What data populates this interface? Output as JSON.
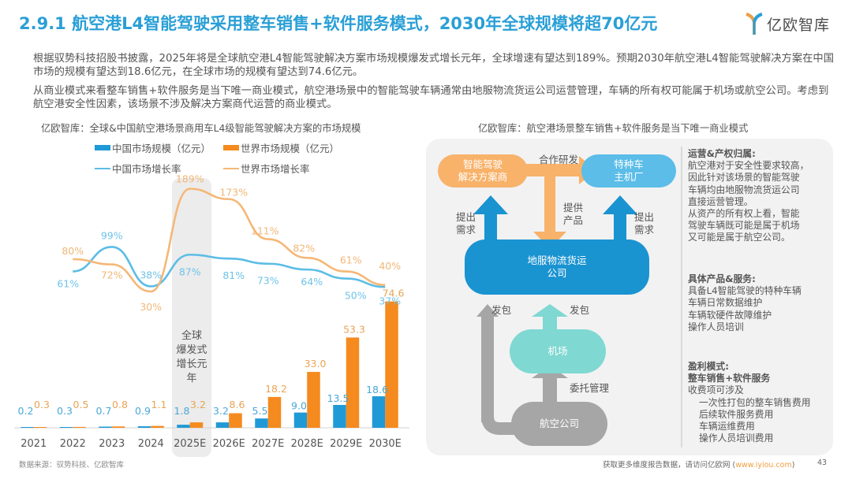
{
  "header": {
    "title": "2.9.1 航空港L4智能驾驶采用整车销售+软件服务模式，2030年全球规模将超70亿元",
    "logo_text": "亿欧智库"
  },
  "paragraphs": [
    "根据驭势科技招股书披露，2025年将是全球航空港L4智能驾驶解决方案市场规模爆发式增长元年，全球增速有望达到189%。预期2030年航空港L4智能驾驶解决方案在中国市场的规模有望达到18.6亿元，在全球市场的规模有望达到74.6亿元。",
    "从商业模式来看整车销售+软件服务是当下唯一商业模式，航空港场景中的智能驾驶车辆通常由地服物流货运公司运营管理，车辆的所有权可能属于机场或航空公司。考虑到航空港安全性因素，该场景不涉及解决方案商代运营的商业模式。"
  ],
  "chart_data": {
    "type": "bar",
    "title": "亿欧智库：全球&中国航空港场景商用车L4级智能驾驶解决方案的市场规模",
    "xlabel": "",
    "ylabel": "",
    "categories": [
      "2021",
      "2022",
      "2023",
      "2024",
      "2025E",
      "2026E",
      "2027E",
      "2028E",
      "2029E",
      "2030E"
    ],
    "series": [
      {
        "name": "中国市场规模（亿元）",
        "kind": "bar",
        "color": "#1f9ad6",
        "values": [
          0.2,
          0.3,
          0.7,
          0.9,
          1.8,
          3.2,
          5.5,
          9.0,
          13.5,
          18.6
        ],
        "labels": [
          "0.2",
          "0.3",
          "0.7",
          "0.9",
          "1.8",
          "3.2",
          "5.5",
          "9.0",
          "13.5",
          "18.6"
        ]
      },
      {
        "name": "世界市场规模（亿元）",
        "kind": "bar",
        "color": "#f58a1f",
        "values": [
          0.3,
          0.5,
          0.8,
          1.1,
          3.2,
          8.6,
          18.2,
          33.0,
          53.3,
          74.6
        ],
        "labels": [
          "0.3",
          "0.5",
          "0.8",
          "1.1",
          "3.2",
          "8.6",
          "18.2",
          "33.0",
          "53.3",
          "74.6"
        ]
      },
      {
        "name": "中国市场增长率",
        "kind": "line",
        "color": "#5bbde6",
        "values": [
          null,
          61,
          99,
          38,
          87,
          81,
          73,
          64,
          50,
          37
        ],
        "labels": [
          "",
          "61%",
          "99%",
          "38%",
          "87%",
          "81%",
          "73%",
          "64%",
          "50%",
          "37%"
        ]
      },
      {
        "name": "世界市场增长率",
        "kind": "line",
        "color": "#f5b777",
        "values": [
          null,
          80,
          72,
          30,
          189,
          173,
          111,
          82,
          61,
          40
        ],
        "labels": [
          "",
          "80%",
          "72%",
          "30%",
          "189%",
          "173%",
          "111%",
          "82%",
          "61%",
          "40%"
        ]
      }
    ],
    "ylim": [
      0,
      80
    ],
    "legend": "top",
    "grid": false,
    "annotation": {
      "category": "2025E",
      "text": "全球\n爆发式\n增长元年"
    }
  },
  "diagram": {
    "title": "亿欧智库：航空港场景整车销售+软件服务是当下唯一商业模式",
    "nodes": {
      "solution_provider": "智能驾驶\n解决方案商",
      "oem": "特种车\n主机厂",
      "logistics": "地服物流货运\n公司",
      "airport": "机场",
      "airline": "航空公司"
    },
    "edges": {
      "cooperate": "合作研发",
      "provide": "提供\n产品",
      "demand_left": "提出\n需求",
      "demand_right": "提出\n需求",
      "outsource_left": "发包",
      "outsource_center": "发包",
      "entrust": "委托管理"
    },
    "colors": {
      "orange": "#f8b26a",
      "blue_light": "#5bbde8",
      "blue_dark": "#1a93d1",
      "teal": "#7fd8d2",
      "gray": "#a6a6a6"
    }
  },
  "sidebar": {
    "sections": [
      {
        "heading": "运营&产权归属:",
        "lines": [
          "航空港对于安全性要求较高，",
          "因此针对该场景的智能驾驶",
          "车辆均由地服物流货运公司",
          "直接运营管理。",
          "从资产的所有权上看，智能",
          "驾驶车辆既可能是属于机场",
          "又可能是属于航空公司。"
        ]
      },
      {
        "heading": "具体产品&服务:",
        "lines": [
          "具备L4智能驾驶的特种车辆",
          "车辆日常数据维护",
          "车辆软硬件故障维护",
          "操作人员培训"
        ]
      },
      {
        "heading": "盈利模式:",
        "subheading": "整车销售+软件服务",
        "lines": [
          "收费项可涉及",
          "  一次性打包的整车销售费用",
          "  后续软件服务费用",
          "  车辆运维费用",
          "  操作人员培训费用"
        ]
      }
    ]
  },
  "footer": {
    "source": "数据来源：驭势科技、亿欧智库",
    "more_text": "获取更多维度报告数据，请访问亿欧网 (",
    "link": "www.iyiou.com",
    "close_paren": ")",
    "page": "43"
  }
}
